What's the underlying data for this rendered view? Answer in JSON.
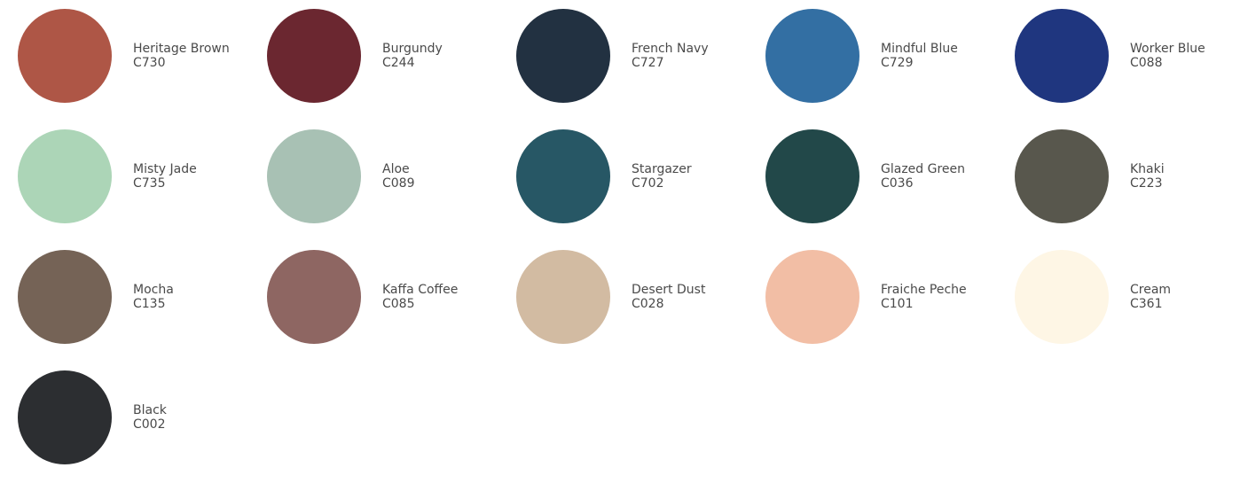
{
  "swatches": [
    {
      "name": "Heritage Brown",
      "code": "C730",
      "color": "#ae5646"
    },
    {
      "name": "Burgundy",
      "code": "C244",
      "color": "#6b2730"
    },
    {
      "name": "French Navy",
      "code": "C727",
      "color": "#223141"
    },
    {
      "name": "Mindful Blue",
      "code": "C729",
      "color": "#336fa3"
    },
    {
      "name": "Worker Blue",
      "code": "C088",
      "color": "#1f367f"
    },
    {
      "name": "Misty Jade",
      "code": "C735",
      "color": "#acd5b7"
    },
    {
      "name": "Aloe",
      "code": "C089",
      "color": "#a8c1b4"
    },
    {
      "name": "Stargazer",
      "code": "C702",
      "color": "#275765"
    },
    {
      "name": "Glazed Green",
      "code": "C036",
      "color": "#224849"
    },
    {
      "name": "Khaki",
      "code": "C223",
      "color": "#58574d"
    },
    {
      "name": "Mocha",
      "code": "C135",
      "color": "#756356"
    },
    {
      "name": "Kaffa Coffee",
      "code": "C085",
      "color": "#8e6662"
    },
    {
      "name": "Desert Dust",
      "code": "C028",
      "color": "#d2bba2"
    },
    {
      "name": "Fraiche Peche",
      "code": "C101",
      "color": "#f2bea5"
    },
    {
      "name": "Cream",
      "code": "C361",
      "color": "#fef6e5"
    },
    {
      "name": "Black",
      "code": "C002",
      "color": "#2c2e31"
    }
  ]
}
